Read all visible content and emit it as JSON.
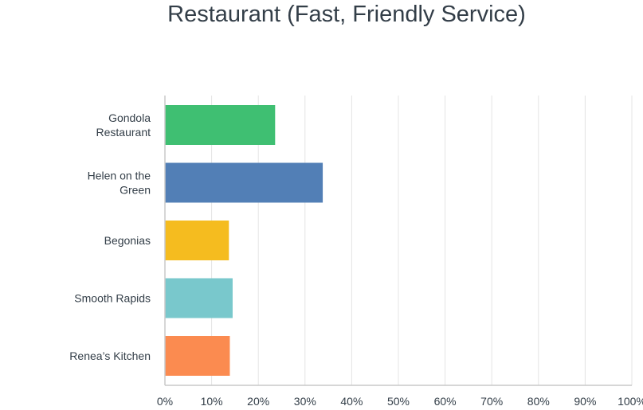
{
  "chart_data": {
    "type": "bar",
    "orientation": "horizontal",
    "title": "Restaurant (Fast, Friendly Service)",
    "categories": [
      [
        "Gondola",
        "Restaurant"
      ],
      [
        "Helen on the",
        "Green"
      ],
      [
        "Begonias"
      ],
      [
        "Smooth Rapids"
      ],
      [
        "Renea’s Kitchen"
      ]
    ],
    "values": [
      23.6,
      33.8,
      13.7,
      14.5,
      13.9
    ],
    "colors": [
      "#3fbf72",
      "#527fb6",
      "#f5bc1f",
      "#79c8cc",
      "#fb8b50"
    ],
    "xlim": [
      0,
      100
    ],
    "ticks": [
      "0%",
      "10%",
      "20%",
      "30%",
      "40%",
      "50%",
      "60%",
      "70%",
      "80%",
      "90%",
      "100%"
    ],
    "grid": true,
    "legend": "none"
  }
}
